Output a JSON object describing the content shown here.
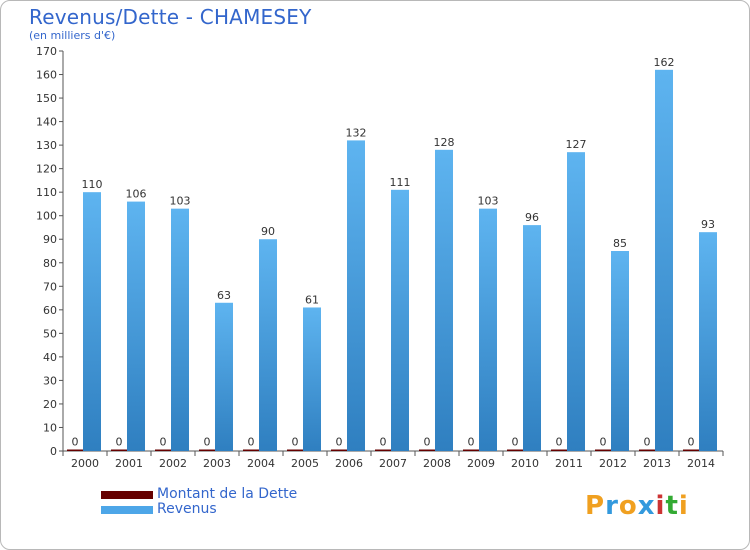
{
  "chart_data": {
    "type": "bar",
    "title": "Revenus/Dette - CHAMESEY",
    "subtitle": "(en milliers d'€)",
    "categories": [
      "2000",
      "2001",
      "2002",
      "2003",
      "2004",
      "2005",
      "2006",
      "2007",
      "2008",
      "2009",
      "2010",
      "2011",
      "2012",
      "2013",
      "2014"
    ],
    "series": [
      {
        "name": "Montant de la Dette",
        "color": "#660000",
        "values": [
          0,
          0,
          0,
          0,
          0,
          0,
          0,
          0,
          0,
          0,
          0,
          0,
          0,
          0,
          0
        ]
      },
      {
        "name": "Revenus",
        "color": "#4da6e8",
        "values": [
          110,
          106,
          103,
          63,
          90,
          61,
          132,
          111,
          128,
          103,
          96,
          127,
          85,
          162,
          93
        ]
      }
    ],
    "ylim": [
      0,
      170
    ],
    "yticks": [
      0,
      10,
      20,
      30,
      40,
      50,
      60,
      70,
      80,
      90,
      100,
      110,
      120,
      130,
      140,
      150,
      160,
      170
    ],
    "grid": false,
    "legend_position": "bottom-left"
  },
  "brand": {
    "letters": [
      "P",
      "r",
      "o",
      "x",
      "i",
      "t",
      "i"
    ],
    "colors": [
      "#f0a020",
      "#3399dd",
      "#f0a020",
      "#3399dd",
      "#cc3333",
      "#33aa33",
      "#f0a020"
    ]
  }
}
